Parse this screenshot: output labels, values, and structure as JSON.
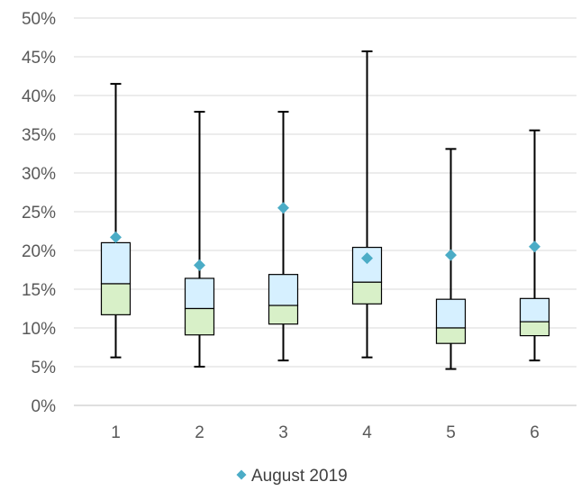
{
  "chart_data": {
    "type": "boxplot",
    "title": "",
    "xlabel": "",
    "ylabel": "",
    "categories": [
      "1",
      "2",
      "3",
      "4",
      "5",
      "6"
    ],
    "y_tick_labels": [
      "0%",
      "5%",
      "10%",
      "15%",
      "20%",
      "25%",
      "30%",
      "35%",
      "40%",
      "45%",
      "50%"
    ],
    "ylim": [
      0,
      50
    ],
    "y_unit": "percent",
    "grid": true,
    "legend_position": "bottom",
    "boxes": [
      {
        "category": "1",
        "min": 6.2,
        "q1": 11.7,
        "median": 15.7,
        "q3": 21.0,
        "max": 41.5
      },
      {
        "category": "2",
        "min": 5.0,
        "q1": 9.1,
        "median": 12.5,
        "q3": 16.4,
        "max": 37.9
      },
      {
        "category": "3",
        "min": 5.8,
        "q1": 10.5,
        "median": 12.9,
        "q3": 16.9,
        "max": 37.9
      },
      {
        "category": "4",
        "min": 6.2,
        "q1": 13.1,
        "median": 15.9,
        "q3": 20.4,
        "max": 45.7
      },
      {
        "category": "5",
        "min": 4.7,
        "q1": 8.0,
        "median": 10.0,
        "q3": 13.7,
        "max": 33.1
      },
      {
        "category": "6",
        "min": 5.8,
        "q1": 9.0,
        "median": 10.8,
        "q3": 13.8,
        "max": 35.5
      }
    ],
    "series": [
      {
        "name": "August 2019",
        "marker": "diamond",
        "color": "#4bacc6",
        "values": [
          21.7,
          18.1,
          25.5,
          19.0,
          19.4,
          20.5
        ]
      }
    ],
    "colors": {
      "upper_box": "#d6f0ff",
      "lower_box": "#d8f0c8",
      "box_stroke": "#000000",
      "gridline": "#d9d9d9",
      "axis_line": "#bfbfbf"
    }
  }
}
